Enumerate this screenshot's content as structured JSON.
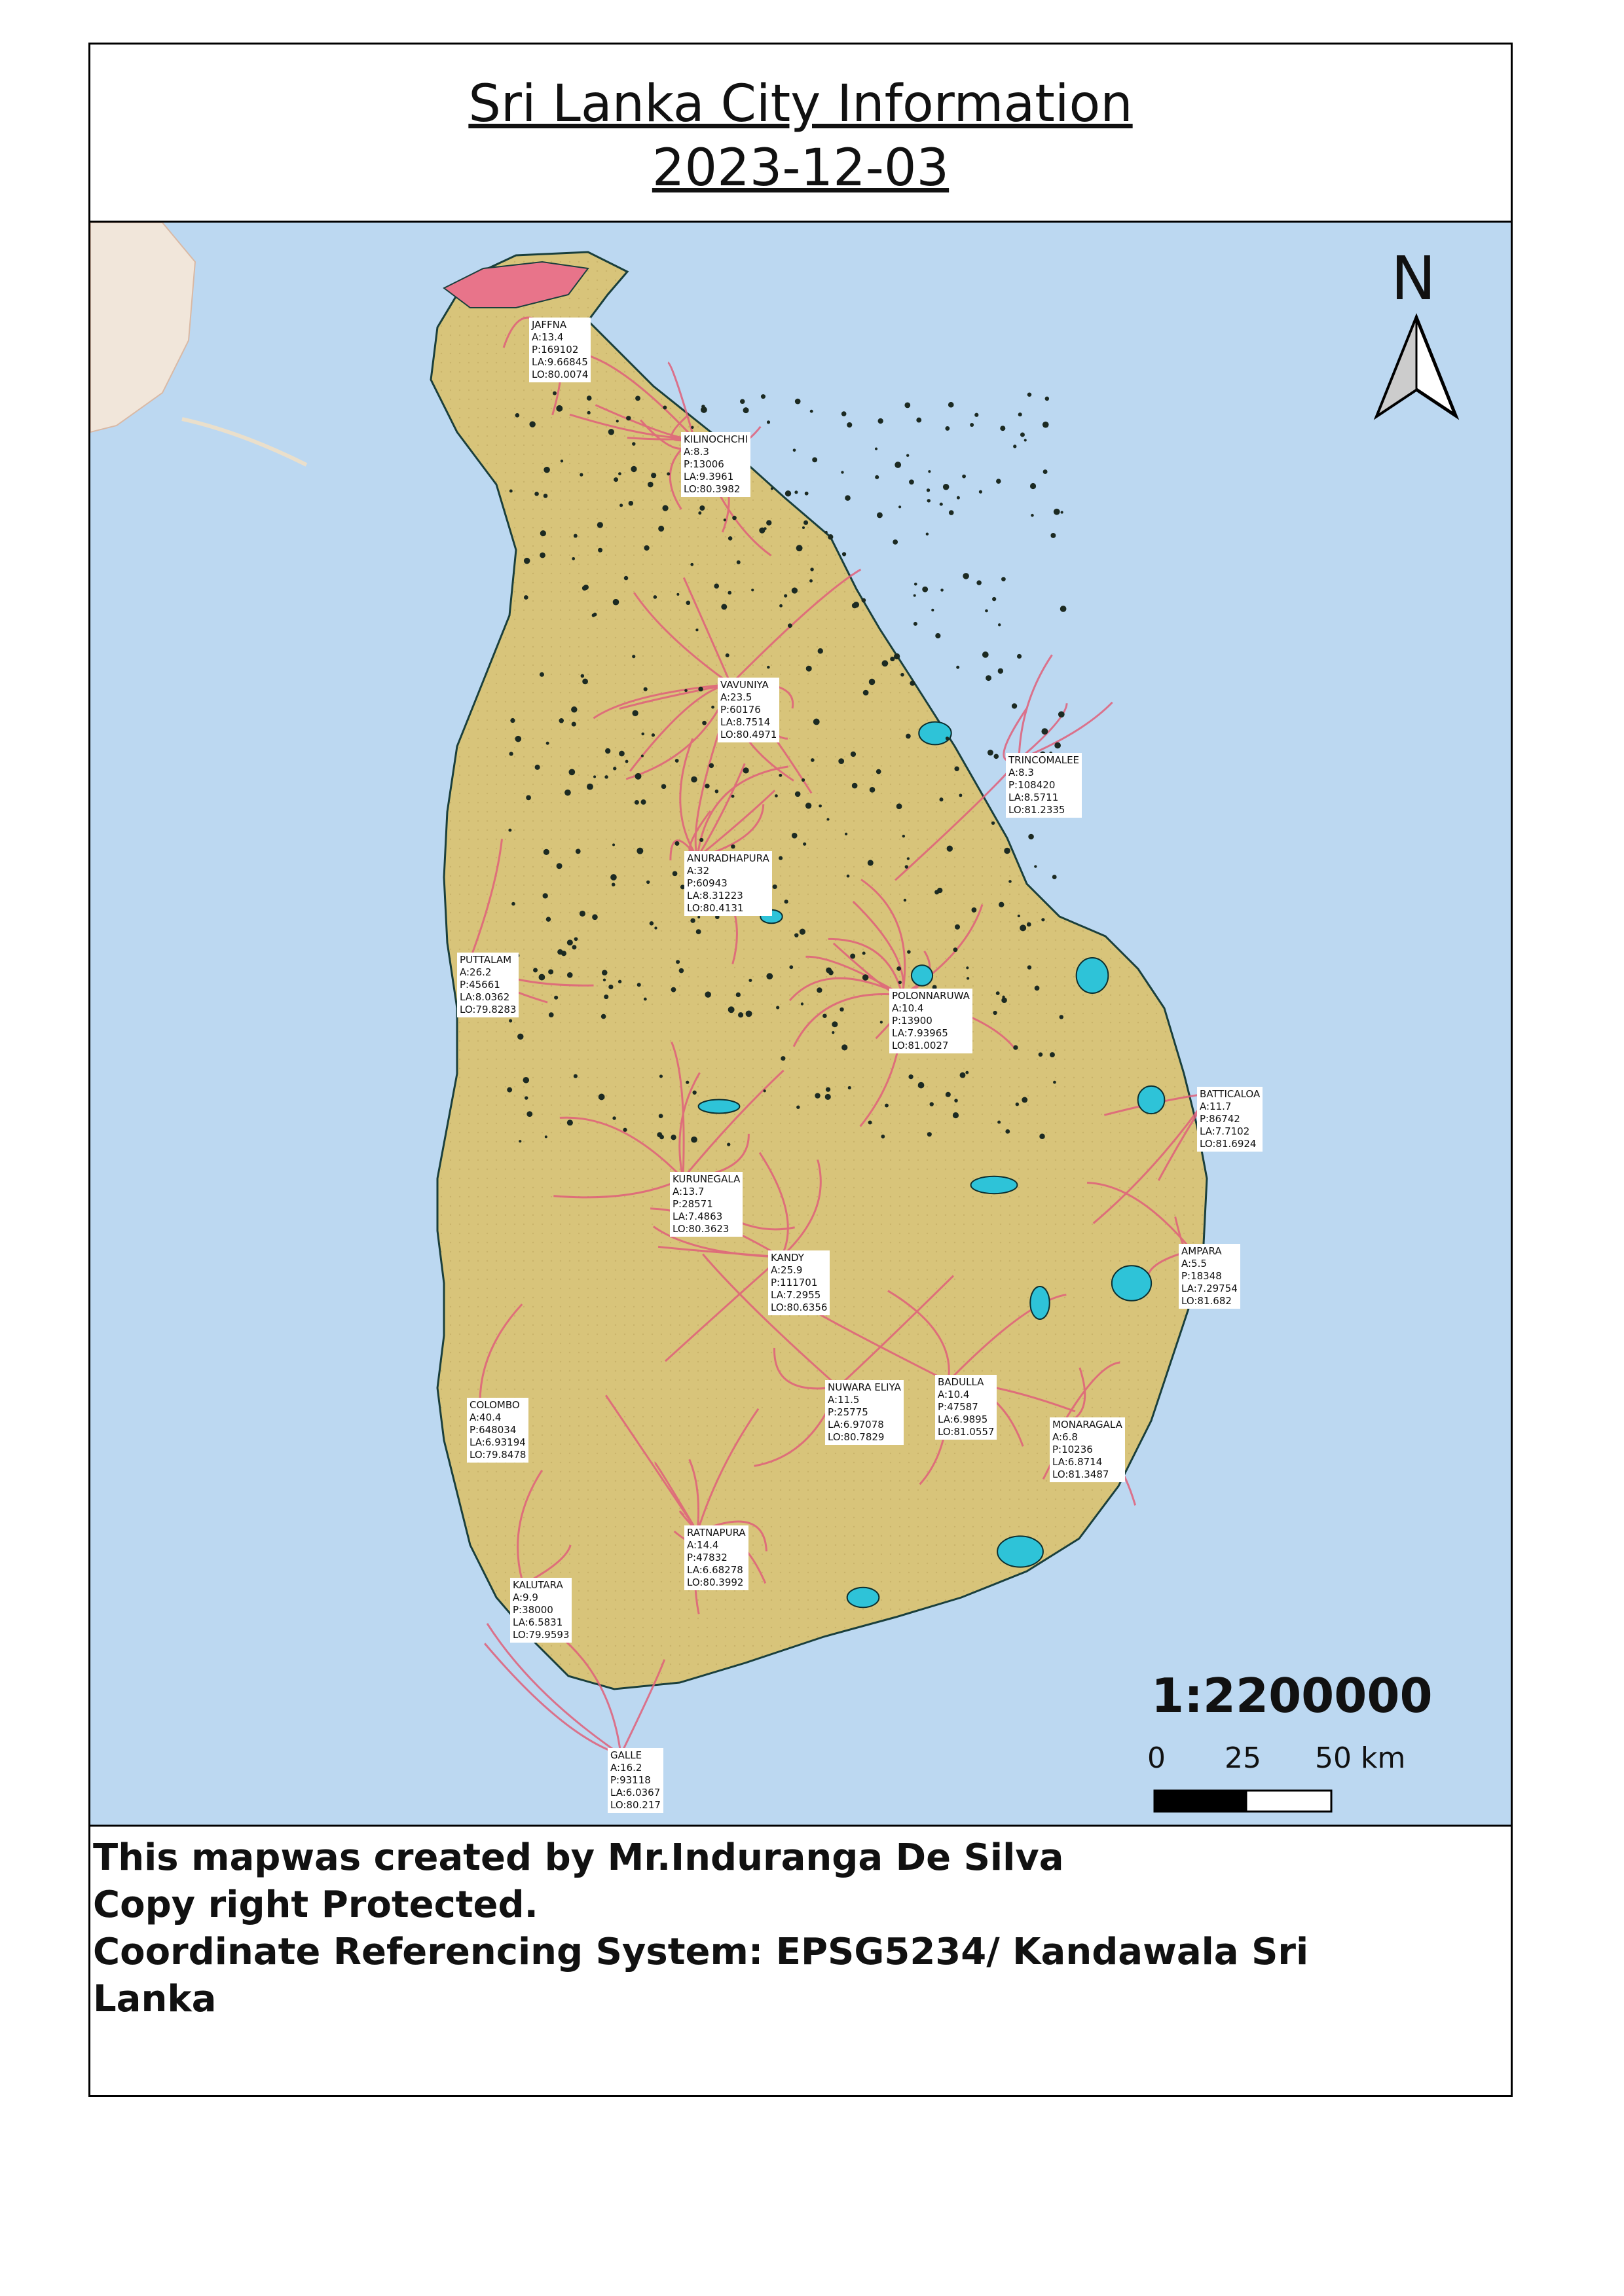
{
  "title": {
    "line1": "Sri Lanka City Information",
    "line2": "2023-12-03"
  },
  "north_arrow": {
    "letter": "N"
  },
  "scale": {
    "ratio": "1:2200000",
    "ticks": [
      "0",
      "25",
      "50 km"
    ]
  },
  "cities": [
    {
      "name": "JAFFNA",
      "a": "A:13.4",
      "p": "P:169102",
      "la": "LA:9.66845",
      "lo": "LO:80.0074"
    },
    {
      "name": "KILINOCHCHI",
      "a": "A:8.3",
      "p": "P:13006",
      "la": "LA:9.3961",
      "lo": "LO:80.3982"
    },
    {
      "name": "VAVUNIYA",
      "a": "A:23.5",
      "p": "P:60176",
      "la": "LA:8.7514",
      "lo": "LO:80.4971"
    },
    {
      "name": "TRINCOMALEE",
      "a": "A:8.3",
      "p": "P:108420",
      "la": "LA:8.5711",
      "lo": "LO:81.2335"
    },
    {
      "name": "ANURADHAPURA",
      "a": "A:32",
      "p": "P:60943",
      "la": "LA:8.31223",
      "lo": "LO:80.4131"
    },
    {
      "name": "PUTTALAM",
      "a": "A:26.2",
      "p": "P:45661",
      "la": "LA:8.0362",
      "lo": "LO:79.8283"
    },
    {
      "name": "POLONNARUWA",
      "a": "A:10.4",
      "p": "P:13900",
      "la": "LA:7.93965",
      "lo": "LO:81.0027"
    },
    {
      "name": "BATTICALOA",
      "a": "A:11.7",
      "p": "P:86742",
      "la": "LA:7.7102",
      "lo": "LO:81.6924"
    },
    {
      "name": "KURUNEGALA",
      "a": "A:13.7",
      "p": "P:28571",
      "la": "LA:7.4863",
      "lo": "LO:80.3623"
    },
    {
      "name": "KANDY",
      "a": "A:25.9",
      "p": "P:111701",
      "la": "LA:7.2955",
      "lo": "LO:80.6356"
    },
    {
      "name": "AMPARA",
      "a": "A:5.5",
      "p": "P:18348",
      "la": "LA:7.29754",
      "lo": "LO:81.682"
    },
    {
      "name": "NUWARA ELIYA",
      "a": "A:11.5",
      "p": "P:25775",
      "la": "LA:6.97078",
      "lo": "LO:80.7829"
    },
    {
      "name": "BADULLA",
      "a": "A:10.4",
      "p": "P:47587",
      "la": "LA:6.9895",
      "lo": "LO:81.0557"
    },
    {
      "name": "COLOMBO",
      "a": "A:40.4",
      "p": "P:648034",
      "la": "LA:6.93194",
      "lo": "LO:79.8478"
    },
    {
      "name": "MONARAGALA",
      "a": "A:6.8",
      "p": "P:10236",
      "la": "LA:6.8714",
      "lo": "LO:81.3487"
    },
    {
      "name": "RATNAPURA",
      "a": "A:14.4",
      "p": "P:47832",
      "la": "LA:6.68278",
      "lo": "LO:80.3992"
    },
    {
      "name": "KALUTARA",
      "a": "A:9.9",
      "p": "P:38000",
      "la": "LA:6.5831",
      "lo": "LO:79.9593"
    },
    {
      "name": "GALLE",
      "a": "A:16.2",
      "p": "P:93118",
      "la": "LA:6.0367",
      "lo": "LO:80.217"
    }
  ],
  "footer": {
    "line1": "This mapwas created by Mr.Induranga De Silva",
    "line2": "Copy right Protected.",
    "line3": "Coordinate Referencing System: EPSG5234/ Kandawala Sri",
    "line4": "Lanka"
  },
  "colors": {
    "sea": "#bcd8f1",
    "land": "#d8c47a",
    "roads": "#e0607a",
    "tanks": "#2ec3d8"
  }
}
